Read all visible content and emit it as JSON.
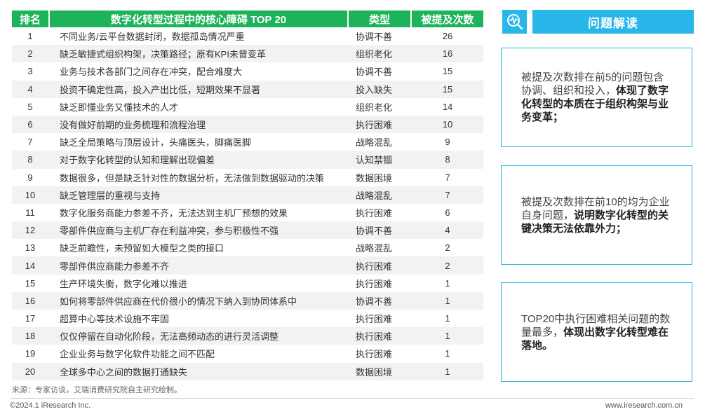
{
  "table": {
    "headers": {
      "rank": "排名",
      "issue": "数字化转型过程中的核心障碍 TOP 20",
      "type": "类型",
      "count": "被提及次数"
    },
    "rows": [
      {
        "rank": "1",
        "issue": "不同业务/云平台数据封闭，数据孤岛情况严重",
        "type": "协调不善",
        "count": "26"
      },
      {
        "rank": "2",
        "issue": "缺乏敏捷式组织构架，决策路径；原有KPI未曾变革",
        "type": "组织老化",
        "count": "16"
      },
      {
        "rank": "3",
        "issue": "业务与技术各部门之间存在冲突，配合难度大",
        "type": "协调不善",
        "count": "15"
      },
      {
        "rank": "4",
        "issue": "投资不确定性高，投入产出比低，短期效果不显著",
        "type": "投入缺失",
        "count": "15"
      },
      {
        "rank": "5",
        "issue": "缺乏即懂业务又懂技术的人才",
        "type": "组织老化",
        "count": "14"
      },
      {
        "rank": "6",
        "issue": "没有做好前期的业务梳理和流程治理",
        "type": "执行困难",
        "count": "10"
      },
      {
        "rank": "7",
        "issue": "缺乏全局策略与顶层设计，头痛医头，脚痛医脚",
        "type": "战略混乱",
        "count": "9"
      },
      {
        "rank": "8",
        "issue": "对于数字化转型的认知和理解出现偏差",
        "type": "认知禁锢",
        "count": "8"
      },
      {
        "rank": "9",
        "issue": "数据很多，但是缺乏针对性的数据分析，无法做到数据驱动的决策",
        "type": "数据困境",
        "count": "7"
      },
      {
        "rank": "10",
        "issue": "缺乏管理层的重视与支持",
        "type": "战略混乱",
        "count": "7"
      },
      {
        "rank": "11",
        "issue": "数字化服务商能力参差不齐，无法达到主机厂预想的效果",
        "type": "执行困难",
        "count": "6"
      },
      {
        "rank": "12",
        "issue": "零部件供应商与主机厂存在利益冲突，参与积极性不强",
        "type": "协调不善",
        "count": "4"
      },
      {
        "rank": "13",
        "issue": "缺乏前瞻性，未预留如大模型之类的接口",
        "type": "战略混乱",
        "count": "2"
      },
      {
        "rank": "14",
        "issue": "零部件供应商能力参差不齐",
        "type": "执行困难",
        "count": "2"
      },
      {
        "rank": "15",
        "issue": "生产环境失衡，数字化难以推进",
        "type": "执行困难",
        "count": "1"
      },
      {
        "rank": "16",
        "issue": "如何将零部件供应商在代价很小的情况下纳入到协同体系中",
        "type": "协调不善",
        "count": "1"
      },
      {
        "rank": "17",
        "issue": "超算中心等技术设施不牢固",
        "type": "执行困难",
        "count": "1"
      },
      {
        "rank": "18",
        "issue": "仅仅停留在自动化阶段，无法高频动态的进行灵活调整",
        "type": "执行困难",
        "count": "1"
      },
      {
        "rank": "19",
        "issue": "企业业务与数字化软件功能之间不匹配",
        "type": "执行困难",
        "count": "1"
      },
      {
        "rank": "20",
        "issue": "全球多中心之间的数据打通缺失",
        "type": "数据困境",
        "count": "1"
      }
    ]
  },
  "source": "来源：专家访谈，艾瑞消费研究院自主研究绘制。",
  "footer": {
    "copyright": "©2024.1 iResearch Inc.",
    "website": "www.iresearch.com.cn"
  },
  "panel": {
    "title": "问题解读",
    "icon": "magnifier-pulse-icon",
    "cards": [
      {
        "plain": "被提及次数排在前5的问题包含协调、组织和投入，",
        "bold": "体现了数字化转型的本质在于组织构架与业务变革；"
      },
      {
        "plain": "被提及次数排在前10的均为企业自身问题，",
        "bold": "说明数字化转型的关键决策无法依靠外力；"
      },
      {
        "plain": "TOP20中执行困难相关问题的数量最多，",
        "bold": "体现出数字化转型难在落地。"
      }
    ]
  },
  "colors": {
    "header_green": "#1cb35a",
    "accent_blue": "#29b6e8",
    "stripe": "#f2f2f2"
  }
}
